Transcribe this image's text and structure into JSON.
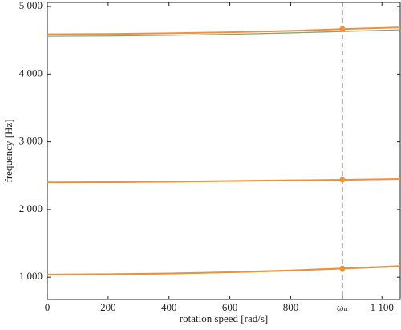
{
  "chart_data": {
    "type": "line",
    "x_label": "rotation speed [rad/s]",
    "y_label": "frequency [Hz]",
    "x": [
      0,
      200,
      400,
      600,
      800,
      1000,
      1160
    ],
    "series": [
      {
        "color": "#7fa77f",
        "values": [
          1035,
          1040,
          1050,
          1070,
          1095,
          1128,
          1158
        ]
      },
      {
        "color": "#f0913a",
        "values": [
          1040,
          1045,
          1055,
          1075,
          1100,
          1135,
          1165
        ]
      },
      {
        "color": "#7fa77f",
        "values": [
          2398,
          2400,
          2407,
          2417,
          2427,
          2437,
          2447
        ]
      },
      {
        "color": "#f0913a",
        "values": [
          2400,
          2403,
          2410,
          2420,
          2430,
          2440,
          2450
        ]
      },
      {
        "color": "#7fa77f",
        "values": [
          4560,
          4565,
          4575,
          4590,
          4610,
          4635,
          4655
        ]
      },
      {
        "color": "#f0913a",
        "values": [
          4590,
          4595,
          4605,
          4620,
          4640,
          4670,
          4690
        ]
      }
    ],
    "markers": {
      "color": "#f0913a",
      "x": [
        970,
        970,
        970
      ],
      "values": [
        1130,
        2437,
        4668
      ]
    },
    "vline_x": 970,
    "xlim": [
      0,
      1160
    ],
    "ylim": [
      670,
      5060
    ],
    "xticks": [
      0,
      200,
      400,
      600,
      800,
      {
        "value": 970,
        "label": "ωₙ"
      },
      {
        "value": 1100,
        "label": "1 100"
      }
    ],
    "yticks": [
      {
        "value": 1000,
        "label": "1 000"
      },
      {
        "value": 2000,
        "label": "2 000"
      },
      {
        "value": 3000,
        "label": "3 000"
      },
      {
        "value": 4000,
        "label": "4 000"
      },
      {
        "value": 5000,
        "label": "5 000"
      }
    ],
    "grid": false
  }
}
